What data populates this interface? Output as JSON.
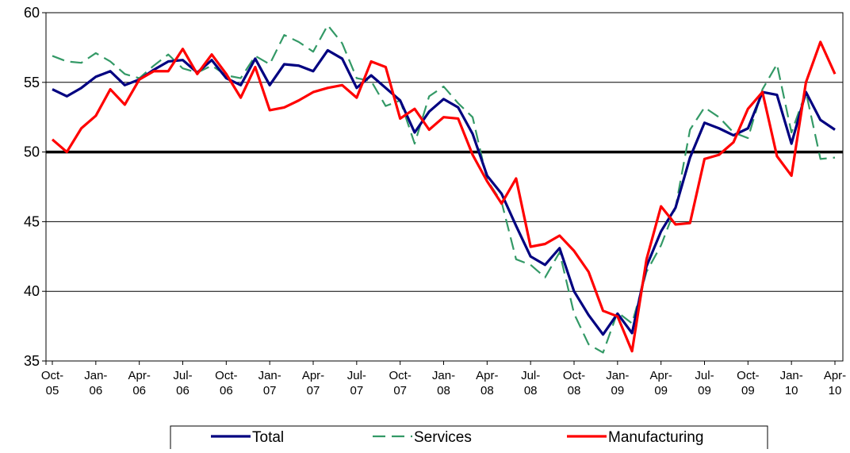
{
  "chart_data": {
    "type": "line",
    "categories": [
      "Oct-05",
      null,
      null,
      "Jan-06",
      null,
      null,
      "Apr-06",
      null,
      null,
      "Jul-06",
      null,
      null,
      "Oct-06",
      null,
      null,
      "Jan-07",
      null,
      null,
      "Apr-07",
      null,
      null,
      "Jul-07",
      null,
      null,
      "Oct-07",
      null,
      null,
      "Jan-08",
      null,
      null,
      "Apr-08",
      null,
      null,
      "Jul-08",
      null,
      null,
      "Oct-08",
      null,
      null,
      "Jan-09",
      null,
      null,
      "Apr-09",
      null,
      null,
      "Jul-09",
      null,
      null,
      "Oct-09",
      null,
      null,
      "Jan-10",
      null,
      null,
      "Apr-10"
    ],
    "series": [
      {
        "name": "Total",
        "color": "#000080",
        "dash": false,
        "values": [
          54.5,
          54.0,
          54.6,
          55.4,
          55.8,
          54.8,
          55.2,
          55.9,
          56.5,
          56.6,
          55.7,
          56.6,
          55.3,
          54.8,
          56.7,
          54.8,
          56.3,
          56.2,
          55.8,
          57.3,
          56.7,
          54.6,
          55.5,
          54.6,
          53.7,
          51.4,
          52.9,
          53.8,
          53.2,
          51.3,
          48.3,
          47.0,
          44.7,
          42.5,
          41.9,
          43.1,
          40.0,
          38.3,
          36.9,
          38.4,
          37.0,
          41.8,
          44.3,
          46.0,
          49.6,
          52.1,
          51.7,
          51.2,
          51.7,
          54.3,
          54.1,
          50.6,
          54.3,
          52.3,
          51.6
        ]
      },
      {
        "name": "Services",
        "color": "#339966",
        "dash": true,
        "values": [
          56.9,
          56.5,
          56.4,
          57.1,
          56.5,
          55.6,
          55.3,
          56.2,
          57.0,
          56.0,
          55.7,
          56.2,
          55.5,
          55.3,
          56.9,
          56.3,
          58.4,
          57.9,
          57.2,
          59.1,
          57.8,
          55.3,
          55.1,
          53.3,
          53.7,
          50.6,
          54.0,
          54.7,
          53.5,
          52.5,
          48.0,
          46.4,
          42.3,
          41.9,
          41.0,
          42.8,
          38.4,
          36.2,
          35.6,
          38.5,
          37.7,
          41.4,
          43.3,
          46.0,
          51.6,
          53.2,
          52.5,
          51.4,
          51.0,
          54.5,
          56.3,
          51.4,
          54.3,
          49.5,
          49.6
        ]
      },
      {
        "name": "Manufacturing",
        "color": "#ff0000",
        "dash": false,
        "values": [
          50.9,
          50.0,
          51.7,
          52.6,
          54.5,
          53.4,
          55.2,
          55.8,
          55.8,
          57.4,
          55.6,
          57.0,
          55.6,
          53.9,
          56.1,
          53.0,
          53.2,
          53.7,
          54.3,
          54.6,
          54.8,
          53.9,
          56.5,
          56.1,
          52.4,
          53.1,
          51.6,
          52.5,
          52.4,
          49.8,
          47.9,
          46.3,
          48.1,
          43.2,
          43.4,
          44.0,
          42.9,
          41.4,
          38.6,
          38.2,
          35.7,
          42.3,
          46.1,
          44.8,
          44.9,
          49.5,
          49.8,
          50.7,
          53.1,
          54.3,
          49.7,
          48.3,
          55.0,
          57.9,
          55.6
        ]
      }
    ],
    "ylim": [
      35,
      60
    ],
    "yticks": [
      35,
      40,
      45,
      50,
      55,
      60
    ],
    "grid": true,
    "reference_line": 50,
    "legend": "bottom"
  }
}
